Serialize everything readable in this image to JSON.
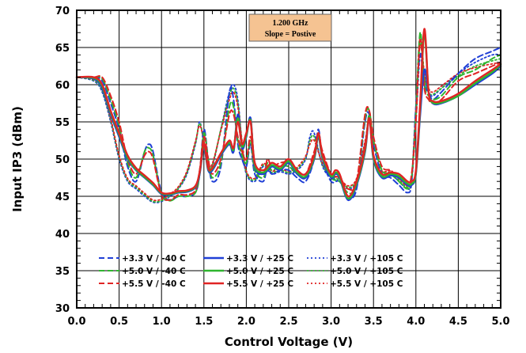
{
  "chart_data": {
    "type": "line",
    "xlabel": "Control Voltage (V)",
    "ylabel": "Input IP3 (dBm)",
    "xlim": [
      0.0,
      5.0
    ],
    "ylim": [
      30,
      70
    ],
    "xticks": [
      "0.0",
      "0.5",
      "1.0",
      "1.5",
      "2.0",
      "2.5",
      "3.0",
      "3.5",
      "4.0",
      "4.5",
      "5.0"
    ],
    "yticks": [
      "30",
      "35",
      "40",
      "45",
      "50",
      "55",
      "60",
      "65",
      "70"
    ],
    "grid": true,
    "annotation": {
      "line1": "1.200 GHz",
      "line2": "Slope = Postive",
      "fill": "#f5c392"
    },
    "legend_position": "bottom-left",
    "colors": {
      "blue": "#1f3fd6",
      "green": "#2fb52f",
      "red": "#e02424"
    },
    "series": [
      {
        "name": "+3.3 V /  -40 C",
        "color": "blue",
        "dash": "dash",
        "x": [
          0,
          0.2,
          0.3,
          0.4,
          0.5,
          0.6,
          0.7,
          0.8,
          0.85,
          0.9,
          1.0,
          1.1,
          1.2,
          1.3,
          1.4,
          1.45,
          1.5,
          1.55,
          1.6,
          1.7,
          1.8,
          1.85,
          1.9,
          1.95,
          2.0,
          2.05,
          2.1,
          2.2,
          2.25,
          2.3,
          2.4,
          2.5,
          2.6,
          2.7,
          2.8,
          2.85,
          2.9,
          3.0,
          3.1,
          3.2,
          3.3,
          3.4,
          3.45,
          3.5,
          3.6,
          3.7,
          3.8,
          3.9,
          3.95,
          4.0,
          4.05,
          4.1,
          4.15,
          4.2,
          4.3,
          4.5,
          4.7,
          4.9,
          5.0
        ],
        "y": [
          61,
          61,
          60.5,
          57.5,
          54,
          49,
          47,
          51,
          52,
          51,
          45.5,
          44.5,
          45,
          45,
          45.5,
          48,
          54,
          50,
          47,
          49,
          59,
          58,
          52,
          50,
          49,
          52,
          48,
          47,
          49,
          48,
          48.5,
          48.5,
          47.5,
          47,
          50,
          54,
          50,
          47,
          47,
          45,
          46,
          55,
          56,
          52,
          48,
          47.5,
          46.5,
          45.5,
          47,
          57,
          64,
          60,
          59,
          58,
          59,
          61.5,
          63.5,
          64.5,
          65
        ]
      },
      {
        "name": "+5.0 V /  -40 C",
        "color": "green",
        "dash": "dash",
        "x": [
          0,
          0.2,
          0.3,
          0.4,
          0.5,
          0.6,
          0.7,
          0.8,
          0.85,
          0.9,
          1.0,
          1.1,
          1.2,
          1.3,
          1.4,
          1.45,
          1.5,
          1.55,
          1.6,
          1.7,
          1.8,
          1.85,
          1.9,
          1.95,
          2.0,
          2.05,
          2.1,
          2.2,
          2.25,
          2.3,
          2.4,
          2.5,
          2.6,
          2.7,
          2.8,
          2.85,
          2.9,
          3.0,
          3.1,
          3.2,
          3.3,
          3.4,
          3.45,
          3.5,
          3.6,
          3.7,
          3.8,
          3.9,
          3.95,
          4.0,
          4.05,
          4.1,
          4.15,
          4.2,
          4.3,
          4.5,
          4.7,
          4.9,
          5.0
        ],
        "y": [
          61,
          61,
          60.8,
          58,
          54.5,
          49.5,
          47.5,
          51,
          51.5,
          50.5,
          45.3,
          44.4,
          45,
          45,
          45.5,
          48,
          53.5,
          50,
          47.5,
          49.5,
          57,
          57,
          52.5,
          50.5,
          49.5,
          52.5,
          48.5,
          47.5,
          49.5,
          48.5,
          49,
          49,
          48,
          47.5,
          50.5,
          53.5,
          50.5,
          47.5,
          47,
          45.5,
          46.5,
          55.5,
          56.5,
          52.5,
          48.5,
          48,
          47,
          46,
          47.5,
          56,
          67,
          60,
          58.5,
          58,
          58.5,
          61,
          62,
          63.5,
          64
        ]
      },
      {
        "name": "+5.5 V /  -40 C",
        "color": "red",
        "dash": "dash",
        "x": [
          0,
          0.2,
          0.3,
          0.4,
          0.5,
          0.6,
          0.7,
          0.8,
          0.85,
          0.9,
          1.0,
          1.1,
          1.2,
          1.3,
          1.4,
          1.45,
          1.5,
          1.55,
          1.6,
          1.7,
          1.8,
          1.85,
          1.9,
          1.95,
          2.0,
          2.05,
          2.1,
          2.2,
          2.25,
          2.3,
          2.4,
          2.5,
          2.6,
          2.7,
          2.8,
          2.85,
          2.9,
          3.0,
          3.1,
          3.2,
          3.3,
          3.4,
          3.45,
          3.5,
          3.6,
          3.7,
          3.8,
          3.9,
          3.95,
          4.0,
          4.05,
          4.1,
          4.15,
          4.2,
          4.3,
          4.5,
          4.7,
          4.9,
          5.0
        ],
        "y": [
          61,
          61,
          61,
          58.5,
          55,
          50,
          48,
          50.5,
          51,
          50,
          45.2,
          44.5,
          45.2,
          45.2,
          45.8,
          48.5,
          53,
          50,
          48,
          50,
          56,
          56,
          53,
          51,
          50,
          53,
          49,
          48,
          50,
          49,
          49.5,
          49.5,
          48.5,
          48,
          51,
          53,
          51,
          48,
          47.5,
          46,
          47,
          56,
          56.5,
          53,
          49,
          48.5,
          47.5,
          46.5,
          48,
          55,
          66,
          59.5,
          58,
          57.5,
          58,
          60.5,
          61.5,
          62.5,
          63
        ]
      },
      {
        "name": "+3.3 V /  +25 C",
        "color": "blue",
        "dash": "solid",
        "x": [
          0,
          0.2,
          0.3,
          0.4,
          0.5,
          0.6,
          0.7,
          0.8,
          0.9,
          1.0,
          1.1,
          1.2,
          1.3,
          1.4,
          1.45,
          1.5,
          1.55,
          1.6,
          1.7,
          1.8,
          1.85,
          1.9,
          1.95,
          2.0,
          2.05,
          2.1,
          2.2,
          2.3,
          2.4,
          2.5,
          2.6,
          2.7,
          2.8,
          2.85,
          2.9,
          3.0,
          3.05,
          3.1,
          3.2,
          3.3,
          3.4,
          3.45,
          3.5,
          3.6,
          3.7,
          3.8,
          3.9,
          3.95,
          4.0,
          4.05,
          4.1,
          4.15,
          4.2,
          4.3,
          4.5,
          4.7,
          4.9,
          5.0
        ],
        "y": [
          61,
          60.8,
          59.5,
          56,
          53,
          50,
          48.5,
          47.5,
          46.5,
          45.3,
          45.2,
          45.5,
          45.6,
          46.2,
          48,
          51.5,
          48.5,
          48.5,
          50.5,
          52,
          51,
          56,
          51.5,
          53,
          55.5,
          49,
          48,
          49,
          48.5,
          49.5,
          48,
          47.5,
          50,
          53,
          50,
          47.5,
          48,
          47.5,
          44.5,
          46.5,
          51,
          55.5,
          50,
          47.5,
          47.8,
          47.5,
          46.5,
          46.5,
          48,
          56,
          62,
          59,
          57.5,
          57.5,
          58.5,
          60,
          61.5,
          62.5
        ]
      },
      {
        "name": "+5.0 V /  +25 C",
        "color": "green",
        "dash": "solid",
        "x": [
          0,
          0.2,
          0.3,
          0.4,
          0.5,
          0.6,
          0.7,
          0.8,
          0.9,
          1.0,
          1.1,
          1.2,
          1.3,
          1.4,
          1.45,
          1.5,
          1.55,
          1.6,
          1.7,
          1.8,
          1.85,
          1.9,
          1.95,
          2.0,
          2.05,
          2.1,
          2.2,
          2.3,
          2.4,
          2.5,
          2.6,
          2.7,
          2.8,
          2.85,
          2.9,
          3.0,
          3.05,
          3.1,
          3.2,
          3.3,
          3.4,
          3.45,
          3.5,
          3.6,
          3.7,
          3.8,
          3.9,
          3.95,
          4.0,
          4.05,
          4.1,
          4.15,
          4.2,
          4.3,
          4.5,
          4.7,
          4.9,
          5.0
        ],
        "y": [
          61,
          60.9,
          59.8,
          56.3,
          53.3,
          50.2,
          48.6,
          47.6,
          46.6,
          45.4,
          45.3,
          45.6,
          45.7,
          46.3,
          48.2,
          51.8,
          48.7,
          48.7,
          50.7,
          52.2,
          51.3,
          55.5,
          51.7,
          53.2,
          55.2,
          49.2,
          48.2,
          49.2,
          48.7,
          49.7,
          48.2,
          47.7,
          50.2,
          53.2,
          50.2,
          47.7,
          48.2,
          47.7,
          44.7,
          46.7,
          51.2,
          55.8,
          50.2,
          47.7,
          48,
          47.7,
          46.7,
          46.7,
          48.2,
          57,
          67,
          59,
          57.6,
          57.6,
          58.5,
          60.2,
          61.7,
          62.7
        ]
      },
      {
        "name": "+5.5 V /  +25 C",
        "color": "red",
        "dash": "solid",
        "x": [
          0,
          0.2,
          0.3,
          0.4,
          0.5,
          0.6,
          0.7,
          0.8,
          0.9,
          1.0,
          1.1,
          1.2,
          1.3,
          1.4,
          1.45,
          1.5,
          1.55,
          1.6,
          1.7,
          1.8,
          1.85,
          1.9,
          1.95,
          2.0,
          2.05,
          2.1,
          2.2,
          2.3,
          2.4,
          2.5,
          2.6,
          2.7,
          2.8,
          2.85,
          2.9,
          3.0,
          3.05,
          3.1,
          3.2,
          3.3,
          3.4,
          3.45,
          3.5,
          3.6,
          3.7,
          3.8,
          3.9,
          3.95,
          4.0,
          4.05,
          4.1,
          4.15,
          4.2,
          4.3,
          4.5,
          4.7,
          4.9,
          5.0
        ],
        "y": [
          61,
          61,
          60,
          56.5,
          53.5,
          50.5,
          48.8,
          47.8,
          46.8,
          45.5,
          45.4,
          45.7,
          45.8,
          46.4,
          48.3,
          52,
          48.8,
          48.8,
          50.8,
          52.5,
          51.5,
          55,
          52,
          53.5,
          55,
          49.5,
          48.5,
          49.5,
          49,
          50,
          48.5,
          48,
          50.5,
          53.5,
          50.5,
          48,
          48.5,
          48,
          45,
          47,
          51.5,
          55.5,
          50.5,
          48,
          48.2,
          48,
          47,
          47,
          48.5,
          57.5,
          67.5,
          59,
          57.8,
          57.8,
          58.8,
          60.5,
          62,
          62.8
        ]
      },
      {
        "name": "+3.3 V /  +105 C",
        "color": "blue",
        "dash": "dot",
        "x": [
          0,
          0.2,
          0.3,
          0.4,
          0.5,
          0.6,
          0.7,
          0.8,
          0.9,
          1.0,
          1.1,
          1.2,
          1.3,
          1.4,
          1.45,
          1.5,
          1.55,
          1.6,
          1.7,
          1.8,
          1.85,
          1.9,
          1.95,
          2.0,
          2.1,
          2.2,
          2.3,
          2.4,
          2.5,
          2.6,
          2.7,
          2.75,
          2.8,
          2.9,
          3.0,
          3.1,
          3.2,
          3.3,
          3.4,
          3.45,
          3.5,
          3.6,
          3.7,
          3.8,
          3.9,
          3.95,
          4.0,
          4.05,
          4.1,
          4.15,
          4.2,
          4.3,
          4.5,
          4.7,
          4.9,
          5.0
        ],
        "y": [
          61,
          60.5,
          59,
          55,
          50,
          47,
          46,
          45,
          44.2,
          44.3,
          45,
          46,
          48,
          52,
          55,
          52,
          49,
          49,
          54,
          59,
          60,
          58,
          52,
          48,
          47,
          49,
          48,
          48.3,
          48,
          48.5,
          50,
          53,
          53.5,
          49,
          47.5,
          47,
          46,
          47,
          52,
          55.5,
          50,
          48,
          48,
          47,
          46,
          47,
          55,
          64,
          61,
          59,
          58.5,
          59.5,
          61.5,
          63,
          64,
          64
        ]
      },
      {
        "name": "+5.0 V /  +105 C",
        "color": "green",
        "dash": "dot",
        "x": [
          0,
          0.2,
          0.3,
          0.4,
          0.5,
          0.6,
          0.7,
          0.8,
          0.9,
          1.0,
          1.1,
          1.2,
          1.3,
          1.4,
          1.45,
          1.5,
          1.55,
          1.6,
          1.7,
          1.8,
          1.85,
          1.9,
          1.95,
          2.0,
          2.1,
          2.2,
          2.3,
          2.4,
          2.5,
          2.6,
          2.7,
          2.75,
          2.8,
          2.9,
          3.0,
          3.1,
          3.2,
          3.3,
          3.4,
          3.45,
          3.5,
          3.6,
          3.7,
          3.8,
          3.9,
          3.95,
          4.0,
          4.05,
          4.1,
          4.15,
          4.2,
          4.3,
          4.5,
          4.7,
          4.9,
          5.0
        ],
        "y": [
          61,
          60.6,
          59.2,
          55.3,
          50.3,
          47.2,
          46.2,
          45.2,
          44.3,
          44.4,
          45.1,
          46.1,
          48.2,
          52.2,
          54.8,
          52.2,
          49.2,
          49.2,
          54,
          58.5,
          59.5,
          57.5,
          52.2,
          48.2,
          47.2,
          49.2,
          48.2,
          48.5,
          48.2,
          48.7,
          50.2,
          52.5,
          53,
          49.2,
          47.7,
          47.2,
          46.2,
          47.2,
          52.2,
          55.5,
          50.2,
          48.2,
          48.2,
          47.2,
          46.2,
          47.2,
          56,
          65.5,
          61,
          59,
          58.7,
          59.5,
          61.2,
          62.5,
          63.2,
          63.5
        ]
      },
      {
        "name": "+5.5 V /  +105 C",
        "color": "red",
        "dash": "dot",
        "x": [
          0,
          0.2,
          0.3,
          0.4,
          0.5,
          0.6,
          0.7,
          0.8,
          0.9,
          1.0,
          1.1,
          1.2,
          1.3,
          1.4,
          1.45,
          1.5,
          1.55,
          1.6,
          1.7,
          1.8,
          1.85,
          1.9,
          1.95,
          2.0,
          2.1,
          2.2,
          2.3,
          2.4,
          2.5,
          2.6,
          2.7,
          2.75,
          2.8,
          2.9,
          3.0,
          3.1,
          3.2,
          3.3,
          3.4,
          3.45,
          3.5,
          3.6,
          3.7,
          3.8,
          3.9,
          3.95,
          4.0,
          4.05,
          4.1,
          4.15,
          4.2,
          4.3,
          4.5,
          4.7,
          4.9,
          5.0
        ],
        "y": [
          61,
          60.7,
          59.4,
          55.5,
          50.5,
          47.4,
          46.4,
          45.4,
          44.5,
          44.6,
          45.3,
          46.3,
          48.4,
          52.4,
          54.5,
          52.4,
          49.4,
          49.4,
          53.8,
          58,
          59,
          57,
          52.4,
          48.4,
          47.4,
          49.4,
          48.4,
          48.7,
          48.4,
          48.9,
          50.4,
          52,
          52.5,
          49.4,
          47.9,
          47.4,
          46.4,
          47.4,
          52.4,
          55,
          50.4,
          48.4,
          48.4,
          47.4,
          46.4,
          47.4,
          57,
          66.5,
          61.5,
          59.5,
          59,
          59.8,
          61.5,
          62.3,
          62.8,
          63
        ]
      }
    ]
  }
}
